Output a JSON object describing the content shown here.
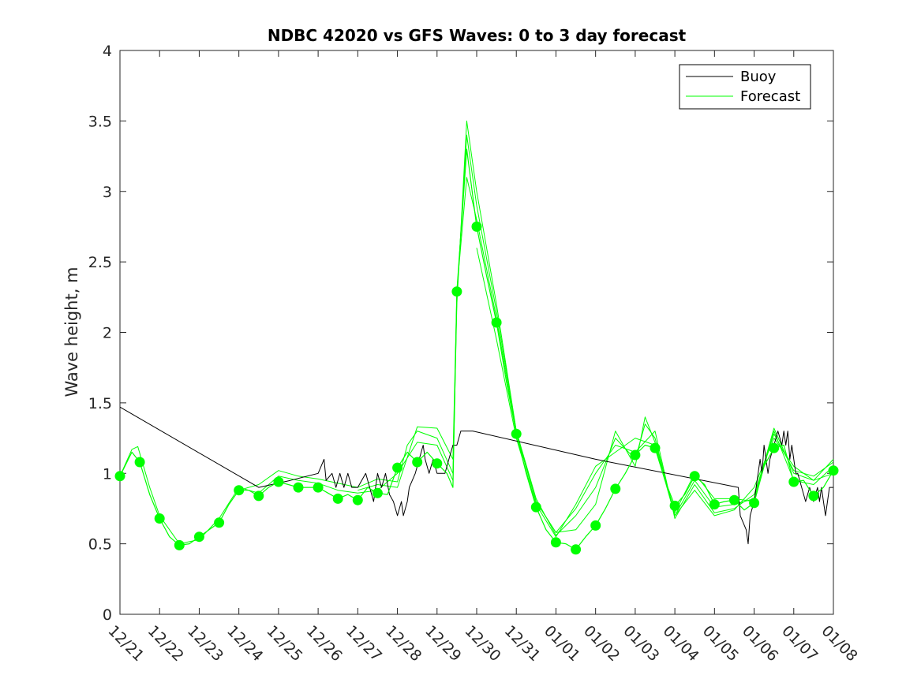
{
  "chart_data": {
    "type": "line",
    "title": "NDBC 42020 vs GFS Waves: 0 to 3 day forecast",
    "xlabel": "",
    "ylabel": "Wave height, m",
    "x_range_days": [
      0,
      18
    ],
    "ylim": [
      0,
      4
    ],
    "yticks": [
      0,
      0.5,
      1,
      1.5,
      2,
      2.5,
      3,
      3.5,
      4
    ],
    "ytick_labels": [
      "0",
      "0.5",
      "1",
      "1.5",
      "2",
      "2.5",
      "3",
      "3.5",
      "4"
    ],
    "xticks": [
      0,
      1,
      2,
      3,
      4,
      5,
      6,
      7,
      8,
      9,
      10,
      11,
      12,
      13,
      14,
      15,
      16,
      17,
      18
    ],
    "xtick_labels": [
      "12/21",
      "12/22",
      "12/23",
      "12/24",
      "12/25",
      "12/26",
      "12/27",
      "12/28",
      "12/29",
      "12/30",
      "12/31",
      "01/01",
      "01/02",
      "01/03",
      "01/04",
      "01/05",
      "01/06",
      "01/07",
      "01/08"
    ],
    "grid": false,
    "legend": {
      "position": "top-right",
      "entries": [
        "Buoy",
        "Forecast"
      ]
    },
    "colors": {
      "buoy": "#000000",
      "forecast": "#00ff00",
      "axis": "#262626"
    },
    "series": [
      {
        "name": "Buoy",
        "color": "#000000",
        "points": [
          [
            0,
            1.47
          ],
          [
            3.5,
            0.9
          ],
          [
            4.3,
            0.95
          ],
          [
            5.0,
            1.0
          ],
          [
            5.15,
            1.1
          ],
          [
            5.2,
            0.95
          ],
          [
            5.35,
            1.0
          ],
          [
            5.45,
            0.9
          ],
          [
            5.55,
            1.0
          ],
          [
            5.65,
            0.9
          ],
          [
            5.75,
            1.0
          ],
          [
            5.85,
            0.9
          ],
          [
            6.0,
            0.9
          ],
          [
            6.2,
            1.0
          ],
          [
            6.3,
            0.9
          ],
          [
            6.4,
            0.8
          ],
          [
            6.5,
            1.0
          ],
          [
            6.6,
            0.9
          ],
          [
            6.7,
            1.0
          ],
          [
            6.8,
            0.85
          ],
          [
            6.9,
            0.8
          ],
          [
            7.0,
            0.7
          ],
          [
            7.1,
            0.8
          ],
          [
            7.15,
            0.7
          ],
          [
            7.25,
            0.8
          ],
          [
            7.3,
            0.9
          ],
          [
            7.45,
            1.0
          ],
          [
            7.55,
            1.1
          ],
          [
            7.65,
            1.2
          ],
          [
            7.7,
            1.1
          ],
          [
            7.8,
            1.0
          ],
          [
            7.9,
            1.1
          ],
          [
            8.0,
            1.0
          ],
          [
            8.2,
            1.0
          ],
          [
            8.3,
            1.1
          ],
          [
            8.4,
            1.2
          ],
          [
            8.5,
            1.2
          ],
          [
            8.6,
            1.3
          ],
          [
            8.9,
            1.3
          ],
          [
            12.0,
            1.1
          ],
          [
            15.6,
            0.9
          ],
          [
            15.65,
            0.7
          ],
          [
            15.8,
            0.6
          ],
          [
            15.85,
            0.5
          ],
          [
            15.9,
            0.7
          ],
          [
            16.0,
            0.8
          ],
          [
            16.05,
            0.9
          ],
          [
            16.1,
            1.0
          ],
          [
            16.15,
            1.1
          ],
          [
            16.2,
            1.0
          ],
          [
            16.25,
            1.2
          ],
          [
            16.35,
            1.0
          ],
          [
            16.4,
            1.1
          ],
          [
            16.5,
            1.2
          ],
          [
            16.6,
            1.3
          ],
          [
            16.7,
            1.2
          ],
          [
            16.75,
            1.3
          ],
          [
            16.8,
            1.2
          ],
          [
            16.85,
            1.3
          ],
          [
            16.9,
            1.1
          ],
          [
            16.95,
            1.2
          ],
          [
            17.05,
            1.0
          ],
          [
            17.1,
            1.0
          ],
          [
            17.2,
            0.9
          ],
          [
            17.3,
            0.8
          ],
          [
            17.4,
            0.9
          ],
          [
            17.5,
            0.8
          ],
          [
            17.6,
            0.9
          ],
          [
            17.65,
            0.8
          ],
          [
            17.7,
            0.9
          ],
          [
            17.75,
            0.8
          ],
          [
            17.8,
            0.7
          ],
          [
            17.85,
            0.8
          ],
          [
            17.9,
            0.9
          ],
          [
            18.0,
            0.9
          ]
        ]
      },
      {
        "name": "Forecast",
        "color": "#00ff00",
        "points": [
          [
            0,
            0.98
          ],
          [
            0.3,
            1.15
          ],
          [
            0.5,
            1.08
          ],
          [
            0.75,
            0.85
          ],
          [
            1.0,
            0.68
          ],
          [
            1.25,
            0.55
          ],
          [
            1.5,
            0.49
          ],
          [
            1.75,
            0.5
          ],
          [
            2.0,
            0.55
          ],
          [
            2.25,
            0.6
          ],
          [
            2.5,
            0.65
          ],
          [
            2.75,
            0.78
          ],
          [
            3.0,
            0.88
          ],
          [
            3.25,
            0.88
          ],
          [
            3.5,
            0.84
          ],
          [
            3.75,
            0.9
          ],
          [
            4.0,
            0.94
          ],
          [
            4.25,
            0.92
          ],
          [
            4.5,
            0.9
          ],
          [
            4.75,
            0.9
          ],
          [
            5.0,
            0.9
          ],
          [
            5.25,
            0.86
          ],
          [
            5.5,
            0.82
          ],
          [
            5.75,
            0.85
          ],
          [
            6.0,
            0.81
          ],
          [
            6.25,
            0.9
          ],
          [
            6.5,
            0.86
          ],
          [
            6.75,
            0.85
          ],
          [
            7.0,
            1.04
          ],
          [
            7.25,
            1.15
          ],
          [
            7.5,
            1.08
          ],
          [
            7.75,
            1.15
          ],
          [
            8.0,
            1.07
          ],
          [
            8.25,
            1.0
          ],
          [
            8.4,
            0.9
          ],
          [
            8.5,
            2.29
          ],
          [
            8.75,
            3.3
          ],
          [
            9.0,
            2.75
          ],
          [
            9.25,
            2.4
          ],
          [
            9.5,
            2.07
          ],
          [
            9.75,
            1.65
          ],
          [
            10.0,
            1.28
          ],
          [
            10.25,
            1.0
          ],
          [
            10.5,
            0.76
          ],
          [
            10.75,
            0.6
          ],
          [
            11.0,
            0.51
          ],
          [
            11.25,
            0.5
          ],
          [
            11.5,
            0.46
          ],
          [
            11.75,
            0.55
          ],
          [
            12.0,
            0.63
          ],
          [
            12.25,
            0.75
          ],
          [
            12.5,
            0.89
          ],
          [
            12.75,
            1.0
          ],
          [
            13.0,
            1.13
          ],
          [
            13.25,
            1.2
          ],
          [
            13.5,
            1.18
          ],
          [
            13.75,
            0.95
          ],
          [
            14.0,
            0.77
          ],
          [
            14.25,
            0.85
          ],
          [
            14.5,
            0.98
          ],
          [
            14.75,
            0.92
          ],
          [
            15.0,
            0.78
          ],
          [
            15.25,
            0.8
          ],
          [
            15.5,
            0.81
          ],
          [
            15.75,
            0.74
          ],
          [
            16.0,
            0.79
          ],
          [
            16.25,
            1.05
          ],
          [
            16.5,
            1.18
          ],
          [
            16.75,
            1.2
          ],
          [
            17.0,
            0.94
          ],
          [
            17.25,
            0.95
          ],
          [
            17.5,
            0.84
          ],
          [
            17.75,
            0.9
          ],
          [
            18.0,
            1.02
          ]
        ]
      }
    ],
    "forecast_markers": [
      [
        0,
        0.98
      ],
      [
        0.5,
        1.08
      ],
      [
        1.0,
        0.68
      ],
      [
        1.5,
        0.49
      ],
      [
        2.0,
        0.55
      ],
      [
        2.5,
        0.65
      ],
      [
        3.0,
        0.88
      ],
      [
        3.5,
        0.84
      ],
      [
        4.0,
        0.94
      ],
      [
        4.5,
        0.9
      ],
      [
        5.0,
        0.9
      ],
      [
        5.5,
        0.82
      ],
      [
        6.0,
        0.81
      ],
      [
        6.5,
        0.86
      ],
      [
        7.0,
        1.04
      ],
      [
        7.5,
        1.08
      ],
      [
        8.0,
        1.07
      ],
      [
        8.5,
        2.29
      ],
      [
        9.0,
        2.75
      ],
      [
        9.5,
        2.07
      ],
      [
        10.0,
        1.28
      ],
      [
        10.5,
        0.76
      ],
      [
        11.0,
        0.51
      ],
      [
        11.5,
        0.46
      ],
      [
        12.0,
        0.63
      ],
      [
        12.5,
        0.89
      ],
      [
        13.0,
        1.13
      ],
      [
        13.5,
        1.18
      ],
      [
        14.0,
        0.77
      ],
      [
        14.5,
        0.98
      ],
      [
        15.0,
        0.78
      ],
      [
        15.5,
        0.81
      ],
      [
        16.0,
        0.79
      ],
      [
        16.5,
        1.18
      ],
      [
        17.0,
        0.94
      ],
      [
        17.5,
        0.84
      ],
      [
        18.0,
        1.02
      ]
    ],
    "forecast_variants": [
      [
        [
          0,
          0.98
        ],
        [
          0.3,
          1.17
        ],
        [
          0.45,
          1.19
        ],
        [
          0.75,
          0.9
        ],
        [
          1.0,
          0.7
        ],
        [
          1.5,
          0.5
        ],
        [
          2.0,
          0.53
        ],
        [
          2.5,
          0.68
        ],
        [
          3.0,
          0.9
        ],
        [
          3.5,
          0.86
        ],
        [
          4.0,
          0.98
        ],
        [
          4.5,
          0.95
        ],
        [
          5.0,
          0.93
        ],
        [
          5.5,
          0.88
        ],
        [
          6.0,
          0.86
        ],
        [
          6.5,
          0.88
        ],
        [
          7.0,
          1.0
        ],
        [
          7.5,
          1.22
        ],
        [
          8.0,
          1.2
        ],
        [
          8.4,
          0.95
        ],
        [
          8.5,
          2.2
        ],
        [
          8.75,
          3.5
        ],
        [
          9.0,
          3.0
        ],
        [
          9.5,
          2.2
        ],
        [
          10.0,
          1.3
        ],
        [
          10.5,
          0.8
        ],
        [
          11.0,
          0.58
        ],
        [
          11.5,
          0.6
        ],
        [
          12.0,
          0.78
        ],
        [
          12.5,
          1.3
        ],
        [
          13.0,
          1.05
        ],
        [
          13.25,
          1.4
        ],
        [
          13.5,
          1.22
        ],
        [
          14.0,
          0.72
        ],
        [
          14.5,
          1.0
        ],
        [
          15.0,
          0.82
        ],
        [
          15.5,
          0.82
        ],
        [
          16.0,
          0.8
        ],
        [
          16.5,
          1.3
        ],
        [
          17.0,
          0.95
        ],
        [
          17.5,
          0.92
        ],
        [
          18.0,
          1.05
        ]
      ],
      [
        [
          3.0,
          0.88
        ],
        [
          3.5,
          0.92
        ],
        [
          4.0,
          1.02
        ],
        [
          4.5,
          0.98
        ],
        [
          5.0,
          0.96
        ],
        [
          5.5,
          0.93
        ],
        [
          6.0,
          0.9
        ],
        [
          6.5,
          0.96
        ],
        [
          7.0,
          0.94
        ],
        [
          7.25,
          1.2
        ],
        [
          7.5,
          1.3
        ],
        [
          8.0,
          1.25
        ],
        [
          8.4,
          1.0
        ],
        [
          8.5,
          2.25
        ],
        [
          8.75,
          3.4
        ],
        [
          9.0,
          2.9
        ],
        [
          9.5,
          2.15
        ],
        [
          10.0,
          1.3
        ],
        [
          10.5,
          0.82
        ],
        [
          11.0,
          0.56
        ],
        [
          11.5,
          0.7
        ],
        [
          12.0,
          0.9
        ],
        [
          12.5,
          1.25
        ],
        [
          13.0,
          1.1
        ],
        [
          13.25,
          1.35
        ],
        [
          13.5,
          1.25
        ],
        [
          14.0,
          0.7
        ],
        [
          14.5,
          0.95
        ],
        [
          15.0,
          0.76
        ],
        [
          15.5,
          0.78
        ],
        [
          16.0,
          0.82
        ],
        [
          16.5,
          1.32
        ],
        [
          17.0,
          1.0
        ],
        [
          17.5,
          0.95
        ],
        [
          18.0,
          1.1
        ]
      ],
      [
        [
          6.0,
          0.88
        ],
        [
          6.5,
          0.92
        ],
        [
          7.0,
          0.9
        ],
        [
          7.5,
          1.33
        ],
        [
          8.0,
          1.32
        ],
        [
          8.4,
          1.1
        ],
        [
          8.5,
          2.3
        ],
        [
          8.75,
          3.1
        ],
        [
          9.0,
          2.8
        ],
        [
          9.5,
          2.1
        ],
        [
          10.0,
          1.28
        ],
        [
          10.5,
          0.8
        ],
        [
          11.0,
          0.58
        ],
        [
          11.5,
          0.75
        ],
        [
          12.0,
          1.0
        ],
        [
          12.5,
          1.2
        ],
        [
          13.0,
          1.15
        ],
        [
          13.5,
          1.3
        ],
        [
          14.0,
          0.68
        ],
        [
          14.5,
          0.92
        ],
        [
          15.0,
          0.72
        ],
        [
          15.5,
          0.75
        ],
        [
          16.0,
          0.85
        ],
        [
          16.5,
          1.28
        ],
        [
          17.0,
          1.02
        ],
        [
          17.5,
          0.98
        ],
        [
          18.0,
          1.08
        ]
      ],
      [
        [
          9.0,
          2.6
        ],
        [
          9.5,
          1.95
        ],
        [
          10.0,
          1.25
        ],
        [
          10.5,
          0.78
        ],
        [
          11.0,
          0.55
        ],
        [
          11.5,
          0.78
        ],
        [
          12.0,
          1.05
        ],
        [
          12.5,
          1.15
        ],
        [
          13.0,
          1.25
        ],
        [
          13.5,
          1.2
        ],
        [
          14.0,
          0.7
        ],
        [
          14.5,
          0.88
        ],
        [
          15.0,
          0.7
        ],
        [
          15.5,
          0.74
        ],
        [
          16.0,
          0.9
        ],
        [
          16.5,
          1.25
        ],
        [
          17.0,
          1.05
        ],
        [
          17.5,
          0.95
        ],
        [
          18.0,
          1.0
        ]
      ]
    ]
  }
}
